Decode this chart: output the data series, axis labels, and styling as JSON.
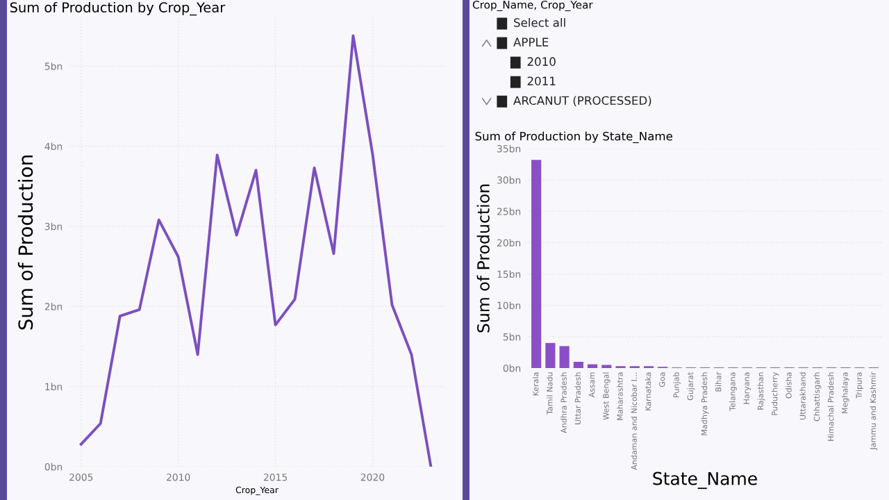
{
  "chart_data": [
    {
      "type": "line",
      "title": "Sum of Production by Crop_Year",
      "xlabel": "Crop_Year",
      "ylabel": "Sum of Production",
      "x": [
        2005,
        2006,
        2007,
        2008,
        2009,
        2010,
        2011,
        2012,
        2013,
        2014,
        2015,
        2016,
        2017,
        2018,
        2019,
        2020,
        2021,
        2022,
        2023
      ],
      "series": [
        {
          "color": "#7b4fc0",
          "values": [
            0.28,
            0.54,
            1.88,
            1.96,
            3.08,
            2.62,
            1.4,
            3.89,
            2.89,
            3.7,
            1.77,
            2.09,
            3.73,
            2.66,
            5.38,
            3.9,
            2.02,
            1.4,
            0.0
          ]
        }
      ],
      "xlim": [
        2004.4,
        2023.7
      ],
      "xticks": [
        2005,
        2010,
        2015,
        2020
      ],
      "ylim": [
        0,
        5.6
      ],
      "yticks": [
        {
          "value": 0,
          "label": "0bn"
        },
        {
          "value": 1,
          "label": "1bn"
        },
        {
          "value": 2,
          "label": "2bn"
        },
        {
          "value": 3,
          "label": "3bn"
        },
        {
          "value": 4,
          "label": "4bn"
        },
        {
          "value": 5,
          "label": "5bn"
        }
      ],
      "grid": true,
      "line_style": "solid"
    },
    {
      "type": "other",
      "title": "Crop_Name, Crop_Year",
      "annotations": [
        "Select all",
        "APPLE",
        "2010",
        "2011",
        "ARCANUT (PROCESSED)"
      ]
    },
    {
      "type": "bar",
      "title": "Sum of Production by State_Name",
      "xlabel": "State_Name",
      "ylabel": "Sum of Production",
      "categories": [
        "Kerala",
        "Tamil Nadu",
        "Andhra Pradesh",
        "Uttar Pradesh",
        "Assam",
        "West Bengal",
        "Maharashtra",
        "Andaman and Nicobar I...",
        "Karnataka",
        "Goa",
        "Punjab",
        "Gujarat",
        "Madhya Pradesh",
        "Bihar",
        "Telangana",
        "Haryana",
        "Rajasthan",
        "Puducherry",
        "Odisha",
        "Uttarakhand",
        "Chhattisgarh",
        "Himachal Pradesh",
        "Meghalaya",
        "Tripura",
        "Jammu and Kashmir"
      ],
      "series": [
        {
          "color": "#8a4fc6",
          "values": [
            33.2,
            4.0,
            3.5,
            1.0,
            0.6,
            0.5,
            0.3,
            0.3,
            0.3,
            0.2,
            0.1,
            0.1,
            0.1,
            0.1,
            0.1,
            0.1,
            0.1,
            0.1,
            0.1,
            0.1,
            0.1,
            0.1,
            0.1,
            0.1,
            0.1
          ]
        }
      ],
      "ylim": [
        0,
        35
      ],
      "yticks": [
        {
          "value": 0,
          "label": "0bn"
        },
        {
          "value": 5,
          "label": "5bn"
        },
        {
          "value": 10,
          "label": "10bn"
        },
        {
          "value": 15,
          "label": "15bn"
        },
        {
          "value": 20,
          "label": "20bn"
        },
        {
          "value": 25,
          "label": "25bn"
        },
        {
          "value": 30,
          "label": "30bn"
        },
        {
          "value": 35,
          "label": "35bn"
        }
      ],
      "grid": "y"
    }
  ]
}
